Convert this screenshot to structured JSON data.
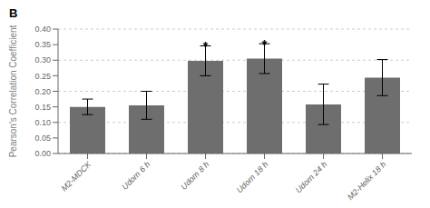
{
  "chart_data": {
    "type": "bar",
    "categories": [
      "M2-MDCK",
      "Udorn 6 h",
      "Udorn 8 h",
      "Udorn 18 h",
      "Udorn 24 h",
      "M2-Helix 18 h"
    ],
    "values": [
      0.15,
      0.155,
      0.298,
      0.305,
      0.158,
      0.244
    ],
    "errors": [
      0.025,
      0.045,
      0.048,
      0.048,
      0.065,
      0.058
    ],
    "color": "#6e6e6e",
    "ylabel": "Pearson's Correlation Coefficient",
    "ylim": [
      0,
      0.4
    ],
    "yticks": [
      {
        "value": 0,
        "label": "0.00"
      },
      0.05,
      {
        "value": 0.1,
        "label": "0.10"
      },
      0.15,
      {
        "value": 0.2,
        "label": "0.20"
      },
      0.25,
      {
        "value": 0.3,
        "label": "0.30"
      },
      0.35,
      {
        "value": 0.4,
        "label": "0.40"
      }
    ],
    "grid": true,
    "annotations": [
      {
        "category": "Udorn 8 h",
        "text": "*"
      },
      {
        "category": "Udorn 18 h",
        "text": "*"
      }
    ],
    "panel_label": "B"
  }
}
